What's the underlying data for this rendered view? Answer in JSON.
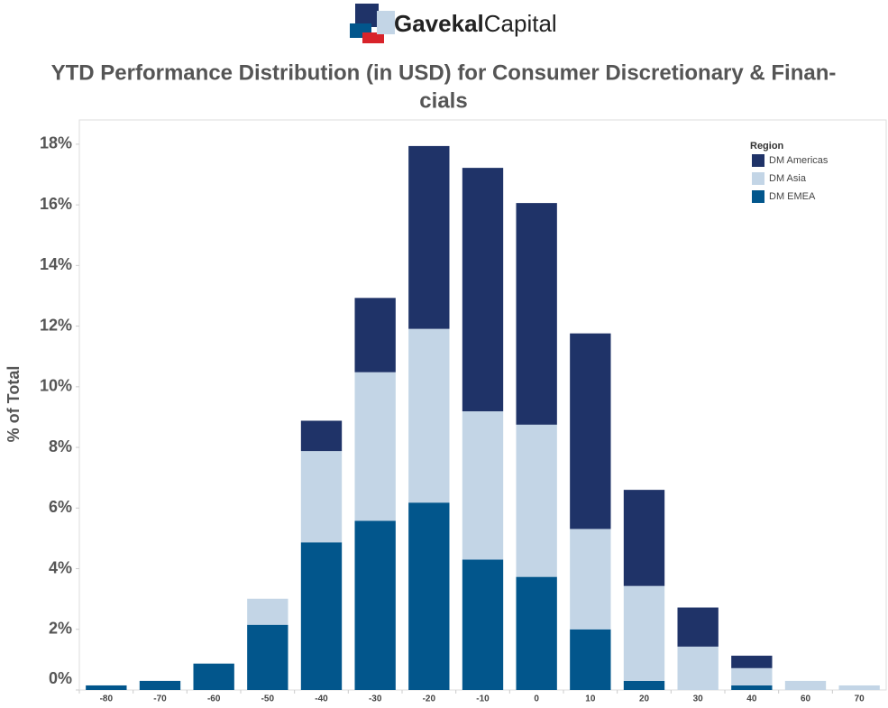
{
  "brand": [
    "Gavekal",
    "Capital"
  ],
  "chart_data": {
    "type": "stacked-bar",
    "title": [
      "YTD Performance Distribution (in USD) for Consumer Discretionary & Finan-",
      "cials"
    ],
    "ylabel": "% of Total",
    "legend_title": "Region",
    "legend_position": "top-right",
    "categories": [
      "-80",
      "-70",
      "-60",
      "-50",
      "-40",
      "-30",
      "-20",
      "-10",
      "0",
      "10",
      "20",
      "30",
      "40",
      "60",
      "70"
    ],
    "series": [
      {
        "name": "DM Americas",
        "color": "#1f3368",
        "values": [
          0,
          0,
          0,
          0,
          1.0,
          2.45,
          6.03,
          8.03,
          7.31,
          6.45,
          3.17,
          1.29,
          0.41,
          0,
          0
        ]
      },
      {
        "name": "DM Asia",
        "color": "#c3d5e6",
        "values": [
          0,
          0,
          0,
          0.86,
          3.01,
          4.9,
          5.73,
          4.89,
          5.02,
          3.31,
          3.13,
          1.43,
          0.57,
          0.3,
          0.15
        ]
      },
      {
        "name": "DM EMEA",
        "color": "#02568c",
        "values": [
          0.15,
          0.3,
          0.87,
          2.15,
          4.87,
          5.58,
          6.18,
          4.3,
          3.73,
          2.0,
          0.3,
          0,
          0.15,
          0,
          0
        ]
      }
    ],
    "ylim": [
      0,
      18.8
    ],
    "yticks": [
      {
        "value": 0,
        "label": "0%"
      },
      {
        "value": 2,
        "label": "2%"
      },
      {
        "value": 4,
        "label": "4%"
      },
      {
        "value": 6,
        "label": "6%"
      },
      {
        "value": 8,
        "label": "8%"
      },
      {
        "value": 10,
        "label": "10%"
      },
      {
        "value": 12,
        "label": "12%"
      },
      {
        "value": 14,
        "label": "14%"
      },
      {
        "value": 16,
        "label": "16%"
      },
      {
        "value": 18,
        "label": "18%"
      }
    ],
    "grid": false
  }
}
